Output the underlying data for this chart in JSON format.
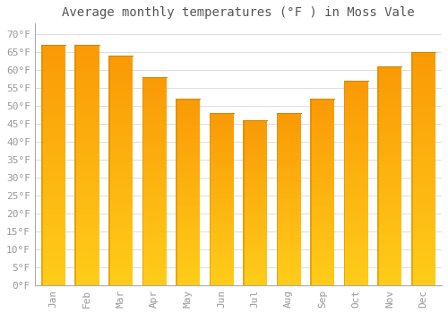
{
  "months": [
    "Jan",
    "Feb",
    "Mar",
    "Apr",
    "May",
    "Jun",
    "Jul",
    "Aug",
    "Sep",
    "Oct",
    "Nov",
    "Dec"
  ],
  "values": [
    67,
    67,
    64,
    58,
    52,
    48,
    46,
    48,
    52,
    57,
    61,
    65
  ],
  "bar_color_face": "#FFA500",
  "bar_color_light": "#FFD060",
  "bar_color_dark": "#E08000",
  "bar_edge_color": "#CC7700",
  "background_color": "#FFFFFF",
  "grid_color": "#DDDDDD",
  "title": "Average monthly temperatures (°F ) in Moss Vale",
  "title_fontsize": 10,
  "ylim": [
    0,
    73
  ],
  "yticks": [
    0,
    5,
    10,
    15,
    20,
    25,
    30,
    35,
    40,
    45,
    50,
    55,
    60,
    65,
    70
  ],
  "tick_fontsize": 8,
  "title_color": "#555555",
  "tick_color": "#999999",
  "font_family": "monospace"
}
